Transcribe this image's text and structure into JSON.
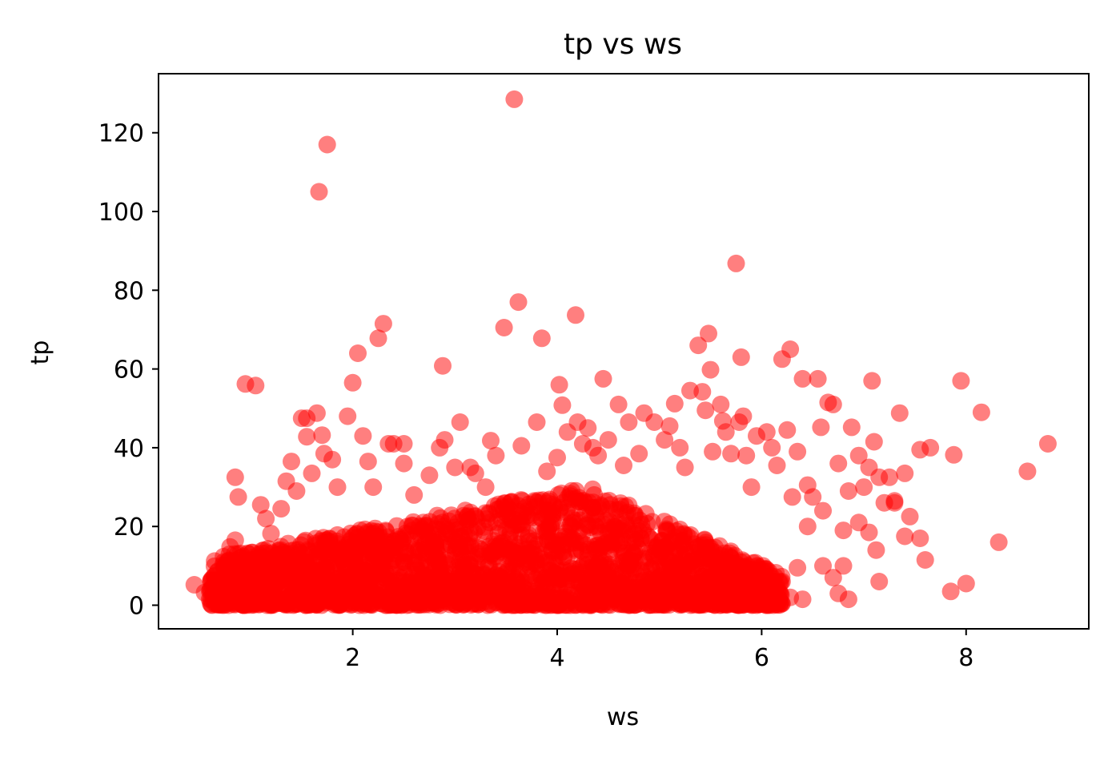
{
  "chart_data": {
    "type": "scatter",
    "title": "tp vs ws",
    "xlabel": "ws",
    "ylabel": "tp",
    "xlim": [
      0.1,
      9.2
    ],
    "ylim": [
      -6,
      135
    ],
    "xticks": [
      2,
      4,
      6,
      8
    ],
    "yticks": [
      0,
      20,
      40,
      60,
      80,
      100,
      120
    ],
    "grid": false,
    "legend": "none",
    "marker_color": "#ff0000",
    "marker_alpha": 0.5,
    "series": [
      {
        "points": [
          [
            0.45,
            5.2
          ],
          [
            0.55,
            3.2
          ],
          [
            0.6,
            1.5
          ],
          [
            0.65,
            0.4
          ],
          [
            0.75,
            8.1
          ],
          [
            0.8,
            14.8
          ],
          [
            0.85,
            16.5
          ],
          [
            0.9,
            12.0
          ],
          [
            0.95,
            9.8
          ],
          [
            0.85,
            32.5
          ],
          [
            0.88,
            27.5
          ],
          [
            0.95,
            56.2
          ],
          [
            1.05,
            55.8
          ],
          [
            1.1,
            25.5
          ],
          [
            1.15,
            22.0
          ],
          [
            1.2,
            18.2
          ],
          [
            1.3,
            24.5
          ],
          [
            1.35,
            31.5
          ],
          [
            1.4,
            36.5
          ],
          [
            1.45,
            29.0
          ],
          [
            1.5,
            47.5
          ],
          [
            1.55,
            47.5
          ],
          [
            1.55,
            42.8
          ],
          [
            1.6,
            33.5
          ],
          [
            1.65,
            48.8
          ],
          [
            1.7,
            43.2
          ],
          [
            1.72,
            38.5
          ],
          [
            1.75,
            117.0
          ],
          [
            1.67,
            105.0
          ],
          [
            1.8,
            37.0
          ],
          [
            1.85,
            30.0
          ],
          [
            1.95,
            48.0
          ],
          [
            2.0,
            56.5
          ],
          [
            2.05,
            64.0
          ],
          [
            2.1,
            43.0
          ],
          [
            2.15,
            36.5
          ],
          [
            2.2,
            30.0
          ],
          [
            2.25,
            67.8
          ],
          [
            2.3,
            71.5
          ],
          [
            2.35,
            41.0
          ],
          [
            2.4,
            41.0
          ],
          [
            2.5,
            41.0
          ],
          [
            2.5,
            36.0
          ],
          [
            2.6,
            28.0
          ],
          [
            2.75,
            33.0
          ],
          [
            2.85,
            40.0
          ],
          [
            2.88,
            60.8
          ],
          [
            2.9,
            42.0
          ],
          [
            3.0,
            35.0
          ],
          [
            3.05,
            46.5
          ],
          [
            3.15,
            35.0
          ],
          [
            3.2,
            33.5
          ],
          [
            3.3,
            30.0
          ],
          [
            3.35,
            41.8
          ],
          [
            3.4,
            38.0
          ],
          [
            3.48,
            70.5
          ],
          [
            3.58,
            128.5
          ],
          [
            3.62,
            77.0
          ],
          [
            3.65,
            40.5
          ],
          [
            3.8,
            46.5
          ],
          [
            3.85,
            67.8
          ],
          [
            3.9,
            34.0
          ],
          [
            4.0,
            37.5
          ],
          [
            4.02,
            56.0
          ],
          [
            4.05,
            50.8
          ],
          [
            4.1,
            44.0
          ],
          [
            4.18,
            73.7
          ],
          [
            4.2,
            46.5
          ],
          [
            4.25,
            41.0
          ],
          [
            4.3,
            45.0
          ],
          [
            4.35,
            40.0
          ],
          [
            4.4,
            38.0
          ],
          [
            4.45,
            57.5
          ],
          [
            4.5,
            42.0
          ],
          [
            4.6,
            51.0
          ],
          [
            4.65,
            35.5
          ],
          [
            4.7,
            46.5
          ],
          [
            4.8,
            38.5
          ],
          [
            4.85,
            48.8
          ],
          [
            4.95,
            46.5
          ],
          [
            5.05,
            42.0
          ],
          [
            5.1,
            45.5
          ],
          [
            5.15,
            51.2
          ],
          [
            5.2,
            40.0
          ],
          [
            5.25,
            35.0
          ],
          [
            5.3,
            54.5
          ],
          [
            5.38,
            66.0
          ],
          [
            5.42,
            54.2
          ],
          [
            5.45,
            49.5
          ],
          [
            5.48,
            69.0
          ],
          [
            5.5,
            59.8
          ],
          [
            5.52,
            39.0
          ],
          [
            5.6,
            51.0
          ],
          [
            5.62,
            46.8
          ],
          [
            5.65,
            44.0
          ],
          [
            5.7,
            38.5
          ],
          [
            5.75,
            86.8
          ],
          [
            5.78,
            46.5
          ],
          [
            5.8,
            63.0
          ],
          [
            5.82,
            48.0
          ],
          [
            5.85,
            38.0
          ],
          [
            5.9,
            30.0
          ],
          [
            5.95,
            43.0
          ],
          [
            6.05,
            44.0
          ],
          [
            6.1,
            40.0
          ],
          [
            6.15,
            35.5
          ],
          [
            6.2,
            62.5
          ],
          [
            6.25,
            44.5
          ],
          [
            6.28,
            65.0
          ],
          [
            6.3,
            27.5
          ],
          [
            6.35,
            39.0
          ],
          [
            6.4,
            57.5
          ],
          [
            6.45,
            30.5
          ],
          [
            6.5,
            27.5
          ],
          [
            6.55,
            57.5
          ],
          [
            6.58,
            45.2
          ],
          [
            6.6,
            24.0
          ],
          [
            6.65,
            51.5
          ],
          [
            6.7,
            51.0
          ],
          [
            6.75,
            36.0
          ],
          [
            6.8,
            19.0
          ],
          [
            6.85,
            29.0
          ],
          [
            6.88,
            45.2
          ],
          [
            6.95,
            38.0
          ],
          [
            7.0,
            30.0
          ],
          [
            7.05,
            35.0
          ],
          [
            7.08,
            57.0
          ],
          [
            7.1,
            41.5
          ],
          [
            7.12,
            14.0
          ],
          [
            7.15,
            32.5
          ],
          [
            7.2,
            26.0
          ],
          [
            7.25,
            32.5
          ],
          [
            7.3,
            26.5
          ],
          [
            7.35,
            48.8
          ],
          [
            7.4,
            33.5
          ],
          [
            7.45,
            22.5
          ],
          [
            7.55,
            39.5
          ],
          [
            7.6,
            11.5
          ],
          [
            7.65,
            40.0
          ],
          [
            7.85,
            3.5
          ],
          [
            7.88,
            38.2
          ],
          [
            7.95,
            57.0
          ],
          [
            8.0,
            5.5
          ],
          [
            8.15,
            49.0
          ],
          [
            8.32,
            16.0
          ],
          [
            8.6,
            34.0
          ],
          [
            8.8,
            41.0
          ],
          [
            6.7,
            7.0
          ],
          [
            6.75,
            3.0
          ],
          [
            6.85,
            1.5
          ],
          [
            6.8,
            10.0
          ],
          [
            7.15,
            6.0
          ],
          [
            7.4,
            17.5
          ],
          [
            7.55,
            17.0
          ],
          [
            7.3,
            26.0
          ],
          [
            7.05,
            18.5
          ],
          [
            6.95,
            21.0
          ],
          [
            6.6,
            10.0
          ],
          [
            6.45,
            20.0
          ],
          [
            6.35,
            9.5
          ],
          [
            6.2,
            6.0
          ],
          [
            6.1,
            1.0
          ],
          [
            6.28,
            2.0
          ],
          [
            6.4,
            1.5
          ],
          [
            6.0,
            2.0
          ]
        ]
      }
    ]
  }
}
